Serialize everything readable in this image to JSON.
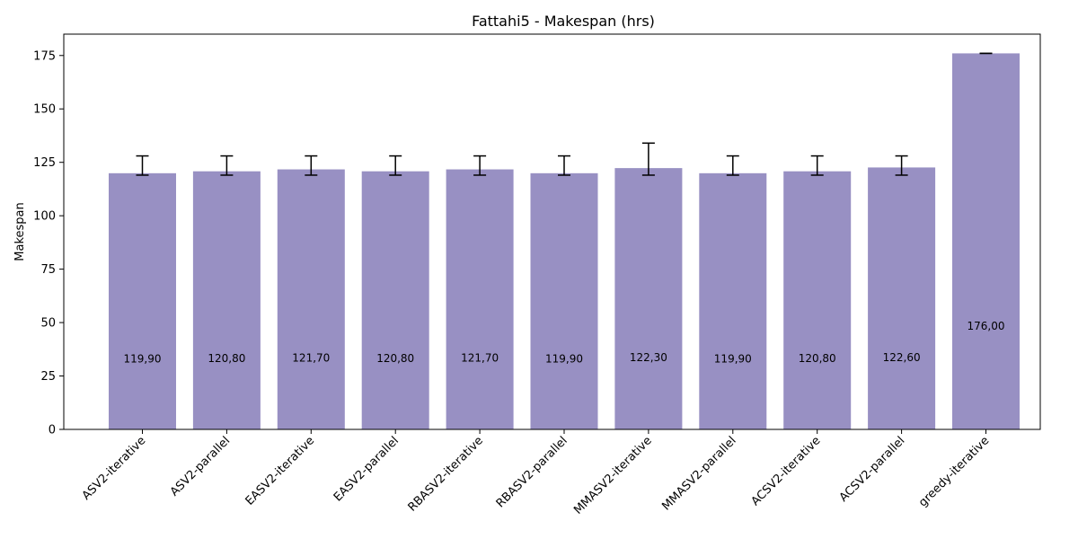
{
  "chart_data": {
    "type": "bar",
    "title": "Fattahi5 - Makespan (hrs)",
    "xlabel": "",
    "ylabel": "Makespan",
    "ylim": [
      0,
      185
    ],
    "yticks": [
      0,
      25,
      50,
      75,
      100,
      125,
      150,
      175
    ],
    "grid": false,
    "bar_color": "#9890c3",
    "categories": [
      "ASV2-iterative",
      "ASV2-parallel",
      "EASV2-iterative",
      "EASV2-parallel",
      "RBASV2-iterative",
      "RBASV2-parallel",
      "MMASV2-iterative",
      "MMASV2-parallel",
      "ACSV2-iterative",
      "ACSV2-parallel",
      "greedy-iterative"
    ],
    "values": [
      119.9,
      120.8,
      121.7,
      120.8,
      121.7,
      119.9,
      122.3,
      119.9,
      120.8,
      122.6,
      176.0
    ],
    "value_labels": [
      "119,90",
      "120,80",
      "121,70",
      "120,80",
      "121,70",
      "119,90",
      "122,30",
      "119,90",
      "120,80",
      "122,60",
      "176,00"
    ],
    "error_low": [
      119,
      119,
      119,
      119,
      119,
      119,
      119,
      119,
      119,
      119,
      176
    ],
    "error_high": [
      128,
      128,
      128,
      128,
      128,
      128,
      134,
      128,
      128,
      128,
      176
    ]
  }
}
